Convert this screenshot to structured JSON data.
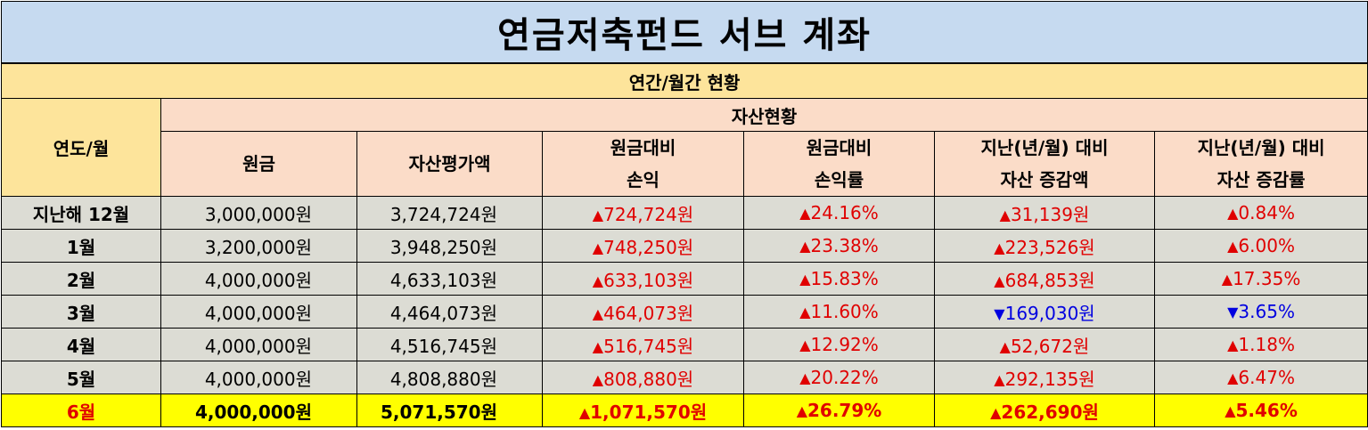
{
  "title": "연금저축펀드 서브 계좌",
  "subtitle": "연간/월간 현황",
  "headers": {
    "year_month": "연도/월",
    "asset_status": "자산현황",
    "principal": "원금",
    "valuation": "자산평가액",
    "pnl_line1": "원금대비",
    "pnl_line2": "손익",
    "pnl_rate_line1": "원금대비",
    "pnl_rate_line2": "손익률",
    "change_line1": "지난(년/월) 대비",
    "change_line2": "자산 증감액",
    "change_rate_line1": "지난(년/월) 대비",
    "change_rate_line2": "자산 증감률"
  },
  "arrows": {
    "up": "▲",
    "down": "▼"
  },
  "colors": {
    "up": "#e00000",
    "down": "#0000e0",
    "highlight": "#ffff00"
  },
  "rows": [
    {
      "label": "지난해 12월",
      "principal": "3,000,000원",
      "valuation": "3,724,724원",
      "pnl": "724,724원",
      "pnl_dir": "up",
      "pnl_rate": "24.16%",
      "pnl_rate_dir": "up",
      "change": "31,139원",
      "change_dir": "up",
      "change_rate": "0.84%",
      "change_rate_dir": "up"
    },
    {
      "label": "1월",
      "principal": "3,200,000원",
      "valuation": "3,948,250원",
      "pnl": "748,250원",
      "pnl_dir": "up",
      "pnl_rate": "23.38%",
      "pnl_rate_dir": "up",
      "change": "223,526원",
      "change_dir": "up",
      "change_rate": "6.00%",
      "change_rate_dir": "up"
    },
    {
      "label": "2월",
      "principal": "4,000,000원",
      "valuation": "4,633,103원",
      "pnl": "633,103원",
      "pnl_dir": "up",
      "pnl_rate": "15.83%",
      "pnl_rate_dir": "up",
      "change": "684,853원",
      "change_dir": "up",
      "change_rate": "17.35%",
      "change_rate_dir": "up"
    },
    {
      "label": "3월",
      "principal": "4,000,000원",
      "valuation": "4,464,073원",
      "pnl": "464,073원",
      "pnl_dir": "up",
      "pnl_rate": "11.60%",
      "pnl_rate_dir": "up",
      "change": "169,030원",
      "change_dir": "down",
      "change_rate": "3.65%",
      "change_rate_dir": "down"
    },
    {
      "label": "4월",
      "principal": "4,000,000원",
      "valuation": "4,516,745원",
      "pnl": "516,745원",
      "pnl_dir": "up",
      "pnl_rate": "12.92%",
      "pnl_rate_dir": "up",
      "change": "52,672원",
      "change_dir": "up",
      "change_rate": "1.18%",
      "change_rate_dir": "up"
    },
    {
      "label": "5월",
      "principal": "4,000,000원",
      "valuation": "4,808,880원",
      "pnl": "808,880원",
      "pnl_dir": "up",
      "pnl_rate": "20.22%",
      "pnl_rate_dir": "up",
      "change": "292,135원",
      "change_dir": "up",
      "change_rate": "6.47%",
      "change_rate_dir": "up"
    },
    {
      "label": "6월",
      "principal": "4,000,000원",
      "valuation": "5,071,570원",
      "pnl": "1,071,570원",
      "pnl_dir": "up",
      "pnl_rate": "26.79%",
      "pnl_rate_dir": "up",
      "change": "262,690원",
      "change_dir": "up",
      "change_rate": "5.46%",
      "change_rate_dir": "up",
      "highlight": true
    }
  ]
}
